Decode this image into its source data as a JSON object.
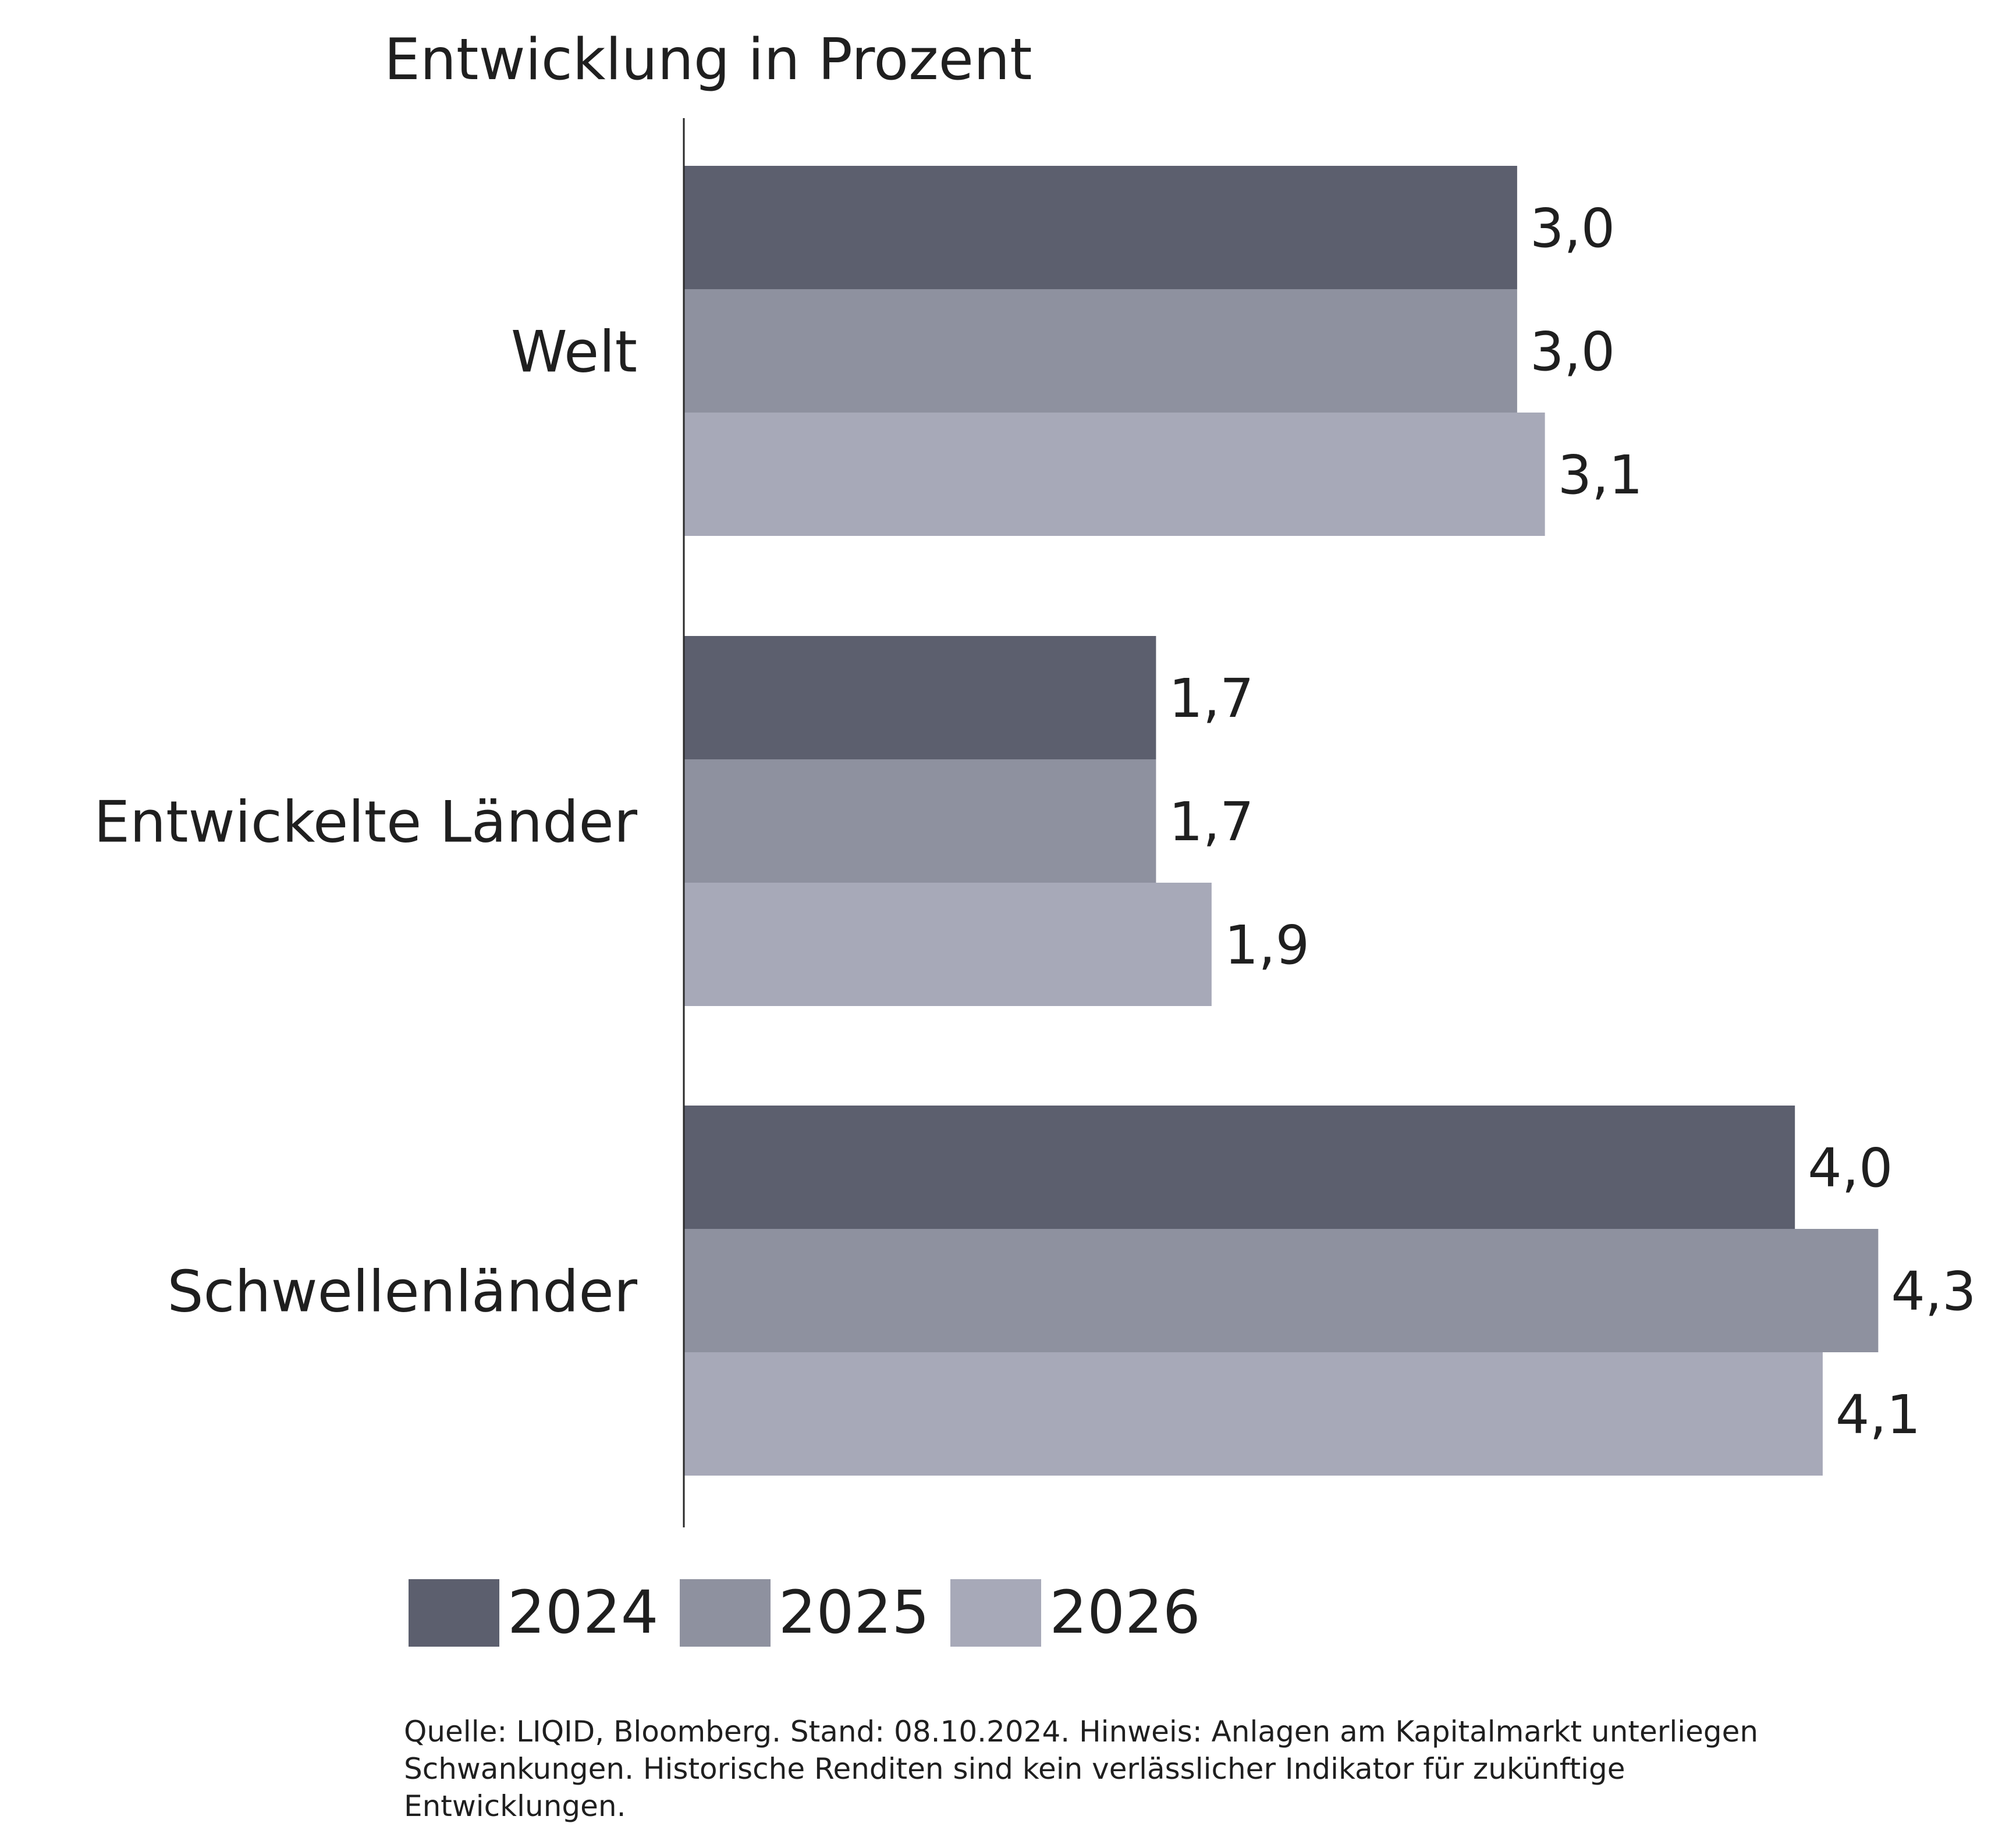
{
  "chart_data": {
    "type": "bar",
    "orientation": "horizontal",
    "title": "Entwicklung in Prozent",
    "categories": [
      "Welt",
      "Entwickelte Länder",
      "Schwellenländer"
    ],
    "series": [
      {
        "name": "2024",
        "color": "#5c5f6e",
        "values": [
          3.0,
          1.7,
          4.0
        ],
        "labels": [
          "3,0",
          "1,7",
          "4,0"
        ]
      },
      {
        "name": "2025",
        "color": "#8e919f",
        "values": [
          3.0,
          1.7,
          4.3
        ],
        "labels": [
          "3,0",
          "1,7",
          "4,3"
        ]
      },
      {
        "name": "2026",
        "color": "#a7a9b8",
        "values": [
          3.1,
          1.9,
          4.1
        ],
        "labels": [
          "3,1",
          "1,9",
          "4,1"
        ]
      }
    ],
    "xlim": [
      0,
      4.3
    ],
    "xlabel": "",
    "ylabel": "",
    "grid": false,
    "legend_position": "bottom"
  },
  "source_note": {
    "lines": [
      "Quelle: LIQID, Bloomberg. Stand: 08.10.2024. Hinweis: Anlagen am Kapitalmarkt unterliegen",
      "Schwankungen. Historische Renditen sind kein verlässlicher Indikator für zukünftige",
      "Entwicklungen."
    ]
  }
}
